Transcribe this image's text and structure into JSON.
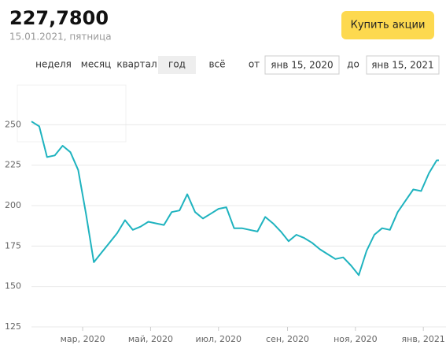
{
  "header": {
    "price": "227,7800",
    "date": "15.01.2021, пятница",
    "buy_button": "Купить акции"
  },
  "periods": [
    "неделя",
    "месяц",
    "квартал",
    "год",
    "всё"
  ],
  "selected_period": 3,
  "range": {
    "from_label": "от",
    "from": "янв 15, 2020",
    "to_label": "до",
    "to": "янв 15, 2021"
  },
  "chart_data": {
    "type": "line",
    "x": [
      "2020-01-15",
      "2020-01-22",
      "2020-01-29",
      "2020-02-05",
      "2020-02-12",
      "2020-02-19",
      "2020-02-26",
      "2020-03-04",
      "2020-03-11",
      "2020-03-18",
      "2020-03-25",
      "2020-04-01",
      "2020-04-08",
      "2020-04-15",
      "2020-04-22",
      "2020-04-29",
      "2020-05-06",
      "2020-05-13",
      "2020-05-20",
      "2020-05-27",
      "2020-06-03",
      "2020-06-10",
      "2020-06-17",
      "2020-06-24",
      "2020-07-01",
      "2020-07-08",
      "2020-07-15",
      "2020-07-22",
      "2020-07-29",
      "2020-08-05",
      "2020-08-12",
      "2020-08-19",
      "2020-08-26",
      "2020-09-02",
      "2020-09-09",
      "2020-09-16",
      "2020-09-23",
      "2020-09-30",
      "2020-10-07",
      "2020-10-14",
      "2020-10-21",
      "2020-10-28",
      "2020-11-04",
      "2020-11-11",
      "2020-11-18",
      "2020-11-25",
      "2020-12-02",
      "2020-12-09",
      "2020-12-16",
      "2020-12-23",
      "2020-12-30",
      "2021-01-06",
      "2021-01-13",
      "2021-01-15"
    ],
    "values": [
      252,
      249,
      230,
      231,
      237,
      233,
      222,
      195,
      165,
      171,
      177,
      183,
      191,
      185,
      187,
      190,
      189,
      188,
      196,
      197,
      207,
      196,
      192,
      195,
      198,
      199,
      186,
      186,
      185,
      184,
      193,
      189,
      184,
      178,
      182,
      180,
      177,
      173,
      170,
      167,
      168,
      163,
      157,
      172,
      182,
      186,
      185,
      196,
      203,
      210,
      209,
      220,
      228,
      228
    ],
    "color": "#1fb3bf",
    "xlim": [
      "2020-01-15",
      "2021-01-15"
    ],
    "xticks": [
      {
        "value": "2020-03-01",
        "label": "мар, 2020"
      },
      {
        "value": "2020-05-01",
        "label": "май, 2020"
      },
      {
        "value": "2020-07-01",
        "label": "июл, 2020"
      },
      {
        "value": "2020-09-01",
        "label": "сен, 2020"
      },
      {
        "value": "2020-11-01",
        "label": "ноя, 2020"
      },
      {
        "value": "2021-01-01",
        "label": "янв, 2021"
      }
    ],
    "ylim": [
      125,
      275
    ],
    "yticks": [
      125,
      150,
      175,
      200,
      225,
      250
    ],
    "grid": true
  }
}
